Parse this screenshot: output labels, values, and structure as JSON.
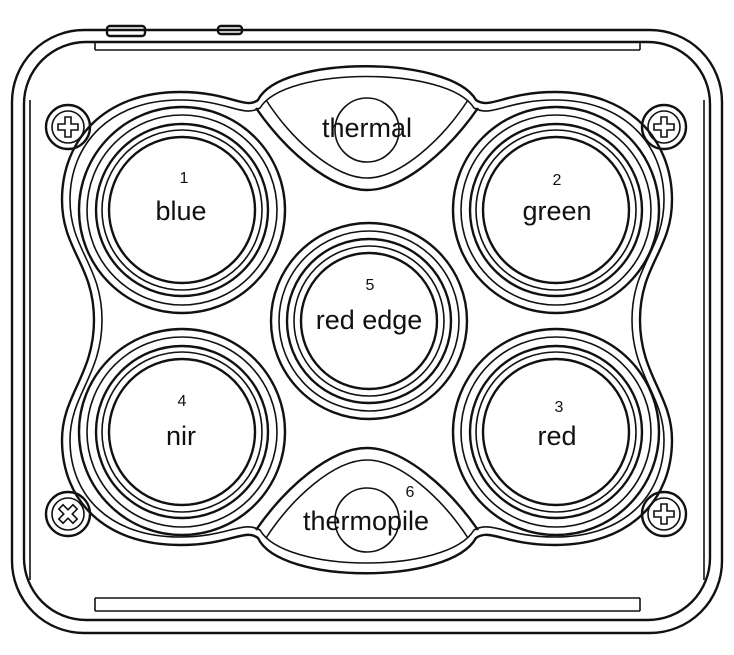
{
  "sensors": [
    {
      "id": "blue",
      "number": "1",
      "label": "blue"
    },
    {
      "id": "green",
      "number": "2",
      "label": "green"
    },
    {
      "id": "red",
      "number": "3",
      "label": "red"
    },
    {
      "id": "nir",
      "number": "4",
      "label": "nir"
    },
    {
      "id": "red-edge",
      "number": "5",
      "label": "red edge"
    },
    {
      "id": "thermopile",
      "number": "6",
      "label": "thermopile"
    }
  ],
  "thermal": {
    "label": "thermal"
  },
  "colors": {
    "line": "#111111",
    "background": "#ffffff"
  }
}
